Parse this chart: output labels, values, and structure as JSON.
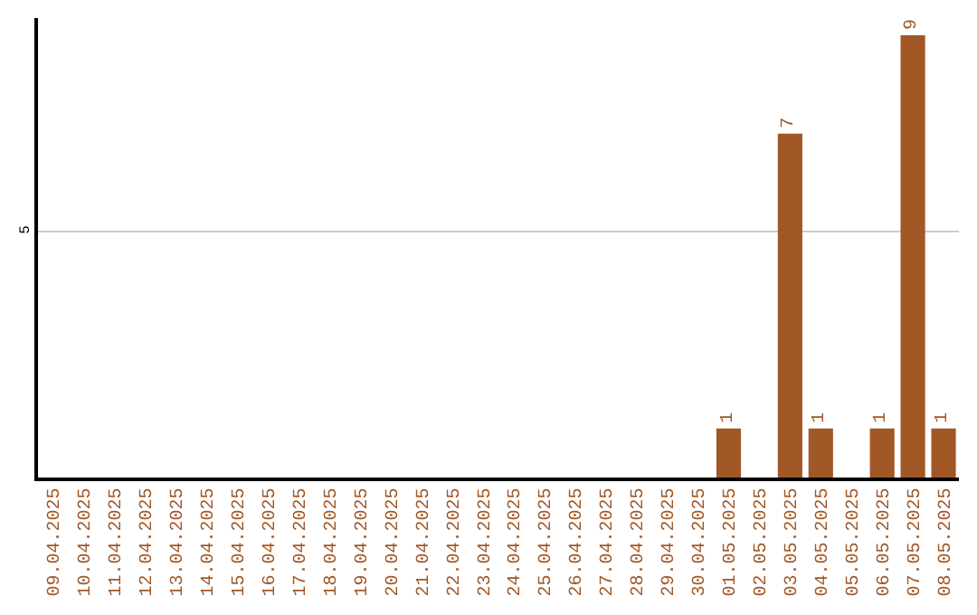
{
  "chart_data": {
    "type": "bar",
    "categories": [
      "09.04.2025",
      "10.04.2025",
      "11.04.2025",
      "12.04.2025",
      "13.04.2025",
      "14.04.2025",
      "15.04.2025",
      "16.04.2025",
      "17.04.2025",
      "18.04.2025",
      "19.04.2025",
      "20.04.2025",
      "21.04.2025",
      "22.04.2025",
      "23.04.2025",
      "24.04.2025",
      "25.04.2025",
      "26.04.2025",
      "27.04.2025",
      "28.04.2025",
      "29.04.2025",
      "30.04.2025",
      "01.05.2025",
      "02.05.2025",
      "03.05.2025",
      "04.05.2025",
      "05.05.2025",
      "06.05.2025",
      "07.05.2025",
      "08.05.2025"
    ],
    "values": [
      null,
      null,
      null,
      null,
      null,
      null,
      null,
      null,
      null,
      null,
      null,
      null,
      null,
      null,
      null,
      null,
      null,
      null,
      null,
      null,
      null,
      null,
      1,
      null,
      7,
      1,
      null,
      1,
      9,
      1
    ],
    "data_labels": true,
    "color": "#a15826",
    "ylim": [
      0,
      9.35
    ],
    "yticks": [
      5
    ],
    "grid": "y",
    "legend": false
  }
}
